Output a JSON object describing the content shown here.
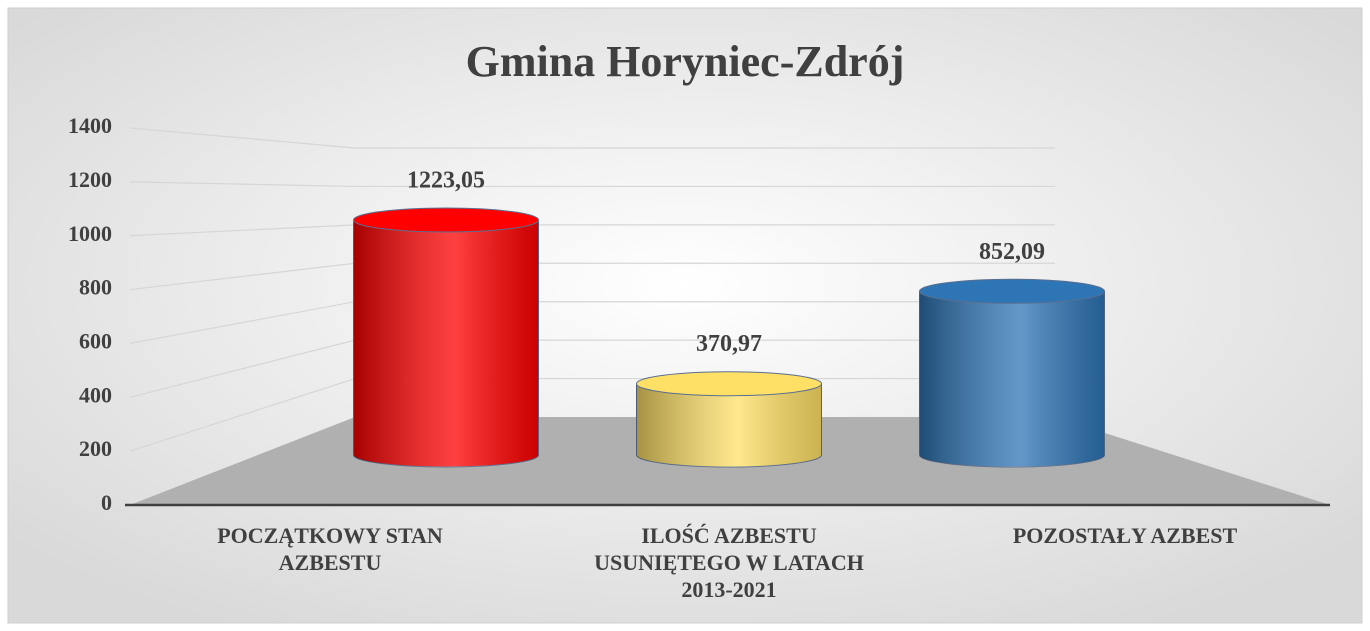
{
  "chart_data": {
    "type": "bar3d",
    "title": "Gmina Horyniec-Zdrój",
    "categories": [
      "POCZĄTKOWY STAN AZBESTU",
      "ILOŚĆ AZBESTU USUNIĘTEGO W LATACH 2013-2021",
      "POZOSTAŁY AZBEST"
    ],
    "values": [
      1223.05,
      370.97,
      852.09
    ],
    "value_labels": [
      "1223,05",
      "370,97",
      "852,09"
    ],
    "colors": [
      "#ff0000",
      "#ffe066",
      "#2e75b6"
    ],
    "ylim": [
      0,
      1400
    ],
    "yticks": [
      0,
      200,
      400,
      600,
      800,
      1000,
      1200,
      1400
    ],
    "grid": true
  }
}
